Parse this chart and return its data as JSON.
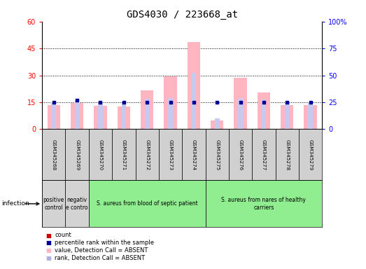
{
  "title": "GDS4030 / 223668_at",
  "samples": [
    "GSM345268",
    "GSM345269",
    "GSM345270",
    "GSM345271",
    "GSM345272",
    "GSM345273",
    "GSM345274",
    "GSM345275",
    "GSM345276",
    "GSM345277",
    "GSM345278",
    "GSM345279"
  ],
  "absent_value": [
    13.5,
    14.5,
    13.0,
    12.5,
    21.5,
    29.5,
    48.5,
    5.0,
    28.5,
    20.5,
    13.5,
    13.5
  ],
  "absent_rank": [
    25.0,
    27.0,
    24.5,
    24.0,
    28.0,
    29.0,
    52.0,
    10.0,
    29.0,
    27.5,
    24.5,
    25.0
  ],
  "rank_values_right": [
    25.0,
    27.0,
    25.0,
    25.0,
    25.0,
    25.0,
    25.0,
    25.0,
    25.0,
    25.0,
    25.0,
    25.0
  ],
  "left_ylim": [
    0,
    60
  ],
  "right_ylim": [
    0,
    100
  ],
  "left_yticks": [
    0,
    15,
    30,
    45,
    60
  ],
  "right_yticks": [
    0,
    25,
    50,
    75,
    100
  ],
  "groups": [
    {
      "label": "positive\ncontrol",
      "start": 0,
      "end": 1,
      "color": "#d3d3d3"
    },
    {
      "label": "negativ\ne contro",
      "start": 1,
      "end": 2,
      "color": "#d3d3d3"
    },
    {
      "label": "S. aureus from blood of septic patient",
      "start": 2,
      "end": 7,
      "color": "#90EE90"
    },
    {
      "label": "S. aureus from nares of healthy\ncarriers",
      "start": 7,
      "end": 12,
      "color": "#90EE90"
    }
  ],
  "infection_label": "infection",
  "legend_items": [
    {
      "label": "count",
      "color": "#cc0000"
    },
    {
      "label": "percentile rank within the sample",
      "color": "#000099"
    },
    {
      "label": "value, Detection Call = ABSENT",
      "color": "#ffb6c1"
    },
    {
      "label": "rank, Detection Call = ABSENT",
      "color": "#b0b0e0"
    }
  ],
  "absent_bar_color": "#ffb6c1",
  "absent_rank_color": "#c8c8f0",
  "count_color": "#cc0000",
  "rank_color": "#000099",
  "title_fontsize": 10,
  "tick_fontsize": 7,
  "background_color": "#ffffff",
  "plot_bg_color": "#ffffff",
  "grid_color": "#000000",
  "absent_bar_width": 0.25,
  "absent_rank_bar_width": 0.1
}
